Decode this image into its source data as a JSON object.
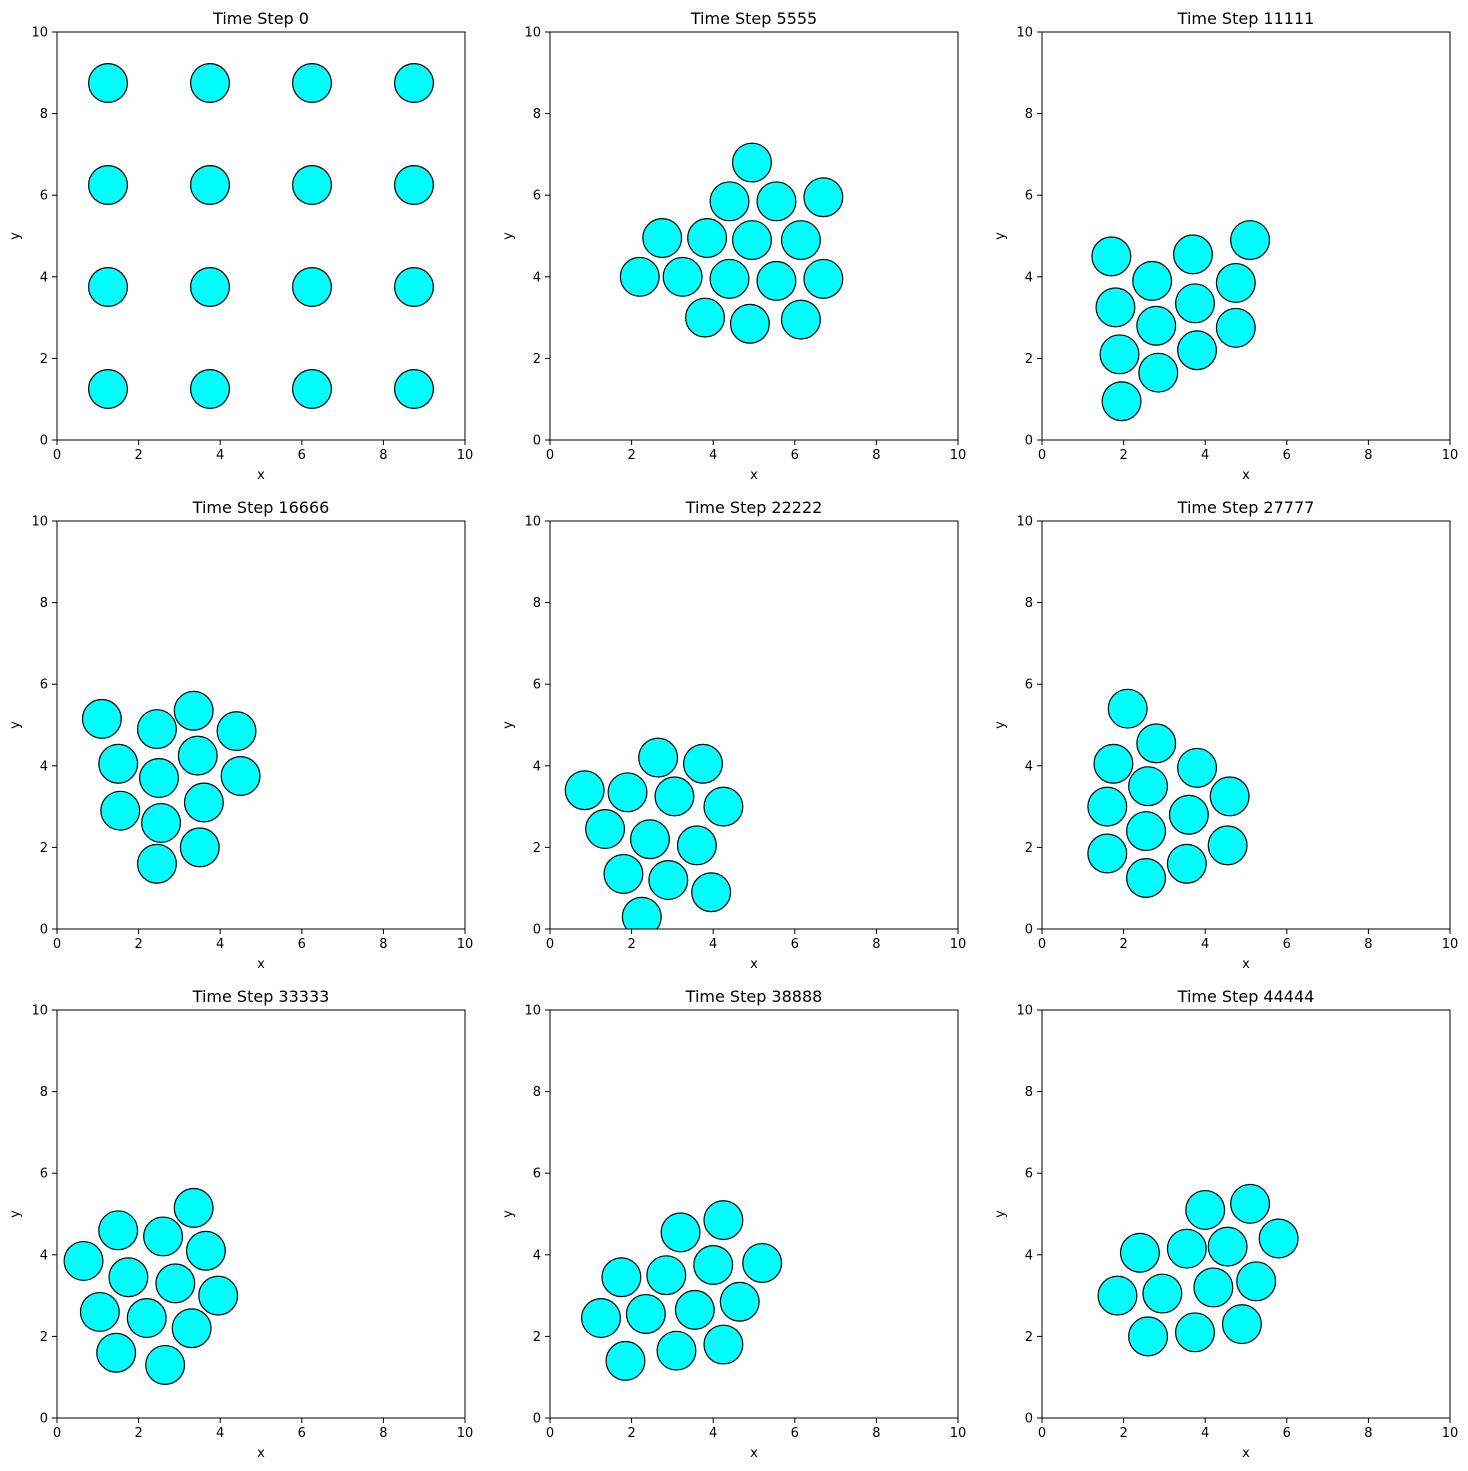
{
  "figure": {
    "marker_fill": "#00ffff",
    "marker_edge": "#000000"
  },
  "chart_data": [
    {
      "type": "scatter",
      "title": "Time Step 0",
      "xlabel": "x",
      "ylabel": "y",
      "xlim": [
        0,
        10
      ],
      "ylim": [
        0,
        10
      ],
      "xticks": [
        0,
        2,
        4,
        6,
        8,
        10
      ],
      "yticks": [
        0,
        2,
        4,
        6,
        8,
        10
      ],
      "grid": false,
      "particle_diameter": 0.95,
      "points": [
        [
          1.25,
          8.75
        ],
        [
          3.75,
          8.75
        ],
        [
          6.25,
          8.75
        ],
        [
          8.75,
          8.75
        ],
        [
          1.25,
          6.25
        ],
        [
          3.75,
          6.25
        ],
        [
          6.25,
          6.25
        ],
        [
          8.75,
          6.25
        ],
        [
          1.25,
          3.75
        ],
        [
          3.75,
          3.75
        ],
        [
          6.25,
          3.75
        ],
        [
          8.75,
          3.75
        ],
        [
          1.25,
          1.25
        ],
        [
          3.75,
          1.25
        ],
        [
          6.25,
          1.25
        ],
        [
          8.75,
          1.25
        ]
      ]
    },
    {
      "type": "scatter",
      "title": "Time Step 5555",
      "xlabel": "x",
      "ylabel": "y",
      "xlim": [
        0,
        10
      ],
      "ylim": [
        0,
        10
      ],
      "xticks": [
        0,
        2,
        4,
        6,
        8,
        10
      ],
      "yticks": [
        0,
        2,
        4,
        6,
        8,
        10
      ],
      "grid": false,
      "particle_diameter": 0.95,
      "points": [
        [
          4.95,
          6.8
        ],
        [
          4.4,
          5.85
        ],
        [
          5.55,
          5.85
        ],
        [
          6.7,
          5.95
        ],
        [
          2.75,
          4.95
        ],
        [
          3.85,
          4.95
        ],
        [
          4.95,
          4.9
        ],
        [
          6.15,
          4.9
        ],
        [
          2.2,
          4.0
        ],
        [
          3.25,
          4.0
        ],
        [
          4.4,
          3.95
        ],
        [
          5.55,
          3.9
        ],
        [
          6.7,
          3.95
        ],
        [
          3.8,
          3.0
        ],
        [
          4.9,
          2.85
        ],
        [
          6.15,
          2.95
        ]
      ]
    },
    {
      "type": "scatter",
      "title": "Time Step 11111",
      "xlabel": "x",
      "ylabel": "y",
      "xlim": [
        0,
        10
      ],
      "ylim": [
        0,
        10
      ],
      "xticks": [
        0,
        2,
        4,
        6,
        8,
        10
      ],
      "yticks": [
        0,
        2,
        4,
        6,
        8,
        10
      ],
      "grid": false,
      "particle_diameter": 0.95,
      "points": [
        [
          5.1,
          4.9
        ],
        [
          1.7,
          4.5
        ],
        [
          3.7,
          4.55
        ],
        [
          2.7,
          3.9
        ],
        [
          4.75,
          3.85
        ],
        [
          1.8,
          3.25
        ],
        [
          3.75,
          3.35
        ],
        [
          2.8,
          2.8
        ],
        [
          4.75,
          2.75
        ],
        [
          1.9,
          2.1
        ],
        [
          3.8,
          2.2
        ],
        [
          2.85,
          1.65
        ],
        [
          1.95,
          0.95
        ]
      ]
    },
    {
      "type": "scatter",
      "title": "Time Step 16666",
      "xlabel": "x",
      "ylabel": "y",
      "xlim": [
        0,
        10
      ],
      "ylim": [
        0,
        10
      ],
      "xticks": [
        0,
        2,
        4,
        6,
        8,
        10
      ],
      "yticks": [
        0,
        2,
        4,
        6,
        8,
        10
      ],
      "grid": false,
      "particle_diameter": 0.95,
      "points": [
        [
          1.1,
          5.15
        ],
        [
          3.35,
          5.35
        ],
        [
          2.45,
          4.9
        ],
        [
          4.4,
          4.85
        ],
        [
          1.5,
          4.05
        ],
        [
          3.45,
          4.25
        ],
        [
          2.5,
          3.7
        ],
        [
          4.5,
          3.75
        ],
        [
          1.55,
          2.9
        ],
        [
          3.6,
          3.1
        ],
        [
          2.55,
          2.6
        ],
        [
          3.5,
          2.0
        ],
        [
          2.45,
          1.6
        ]
      ]
    },
    {
      "type": "scatter",
      "title": "Time Step 22222",
      "xlabel": "x",
      "ylabel": "y",
      "xlim": [
        0,
        10
      ],
      "ylim": [
        0,
        10
      ],
      "xticks": [
        0,
        2,
        4,
        6,
        8,
        10
      ],
      "yticks": [
        0,
        2,
        4,
        6,
        8,
        10
      ],
      "grid": false,
      "particle_diameter": 0.95,
      "points": [
        [
          2.65,
          4.2
        ],
        [
          3.75,
          4.05
        ],
        [
          0.85,
          3.4
        ],
        [
          1.9,
          3.35
        ],
        [
          3.05,
          3.25
        ],
        [
          4.25,
          3.0
        ],
        [
          1.35,
          2.45
        ],
        [
          2.45,
          2.2
        ],
        [
          3.6,
          2.05
        ],
        [
          1.8,
          1.35
        ],
        [
          2.9,
          1.2
        ],
        [
          3.95,
          0.9
        ],
        [
          2.25,
          0.3
        ]
      ]
    },
    {
      "type": "scatter",
      "title": "Time Step 27777",
      "xlabel": "x",
      "ylabel": "y",
      "xlim": [
        0,
        10
      ],
      "ylim": [
        0,
        10
      ],
      "xticks": [
        0,
        2,
        4,
        6,
        8,
        10
      ],
      "yticks": [
        0,
        2,
        4,
        6,
        8,
        10
      ],
      "grid": false,
      "particle_diameter": 0.95,
      "points": [
        [
          2.1,
          5.4
        ],
        [
          2.8,
          4.55
        ],
        [
          1.75,
          4.05
        ],
        [
          3.8,
          3.95
        ],
        [
          2.6,
          3.5
        ],
        [
          4.6,
          3.25
        ],
        [
          1.6,
          3.0
        ],
        [
          3.6,
          2.8
        ],
        [
          2.55,
          2.4
        ],
        [
          1.6,
          1.85
        ],
        [
          4.55,
          2.05
        ],
        [
          3.55,
          1.6
        ],
        [
          2.55,
          1.25
        ]
      ]
    },
    {
      "type": "scatter",
      "title": "Time Step 33333",
      "xlabel": "x",
      "ylabel": "y",
      "xlim": [
        0,
        10
      ],
      "ylim": [
        0,
        10
      ],
      "xticks": [
        0,
        2,
        4,
        6,
        8,
        10
      ],
      "yticks": [
        0,
        2,
        4,
        6,
        8,
        10
      ],
      "grid": false,
      "particle_diameter": 0.95,
      "points": [
        [
          3.35,
          5.15
        ],
        [
          1.5,
          4.6
        ],
        [
          2.6,
          4.45
        ],
        [
          3.65,
          4.1
        ],
        [
          0.65,
          3.85
        ],
        [
          1.75,
          3.45
        ],
        [
          2.9,
          3.3
        ],
        [
          3.95,
          3.0
        ],
        [
          1.05,
          2.6
        ],
        [
          2.2,
          2.45
        ],
        [
          3.3,
          2.2
        ],
        [
          1.45,
          1.6
        ],
        [
          2.65,
          1.3
        ]
      ]
    },
    {
      "type": "scatter",
      "title": "Time Step 38888",
      "xlabel": "x",
      "ylabel": "y",
      "xlim": [
        0,
        10
      ],
      "ylim": [
        0,
        10
      ],
      "xticks": [
        0,
        2,
        4,
        6,
        8,
        10
      ],
      "yticks": [
        0,
        2,
        4,
        6,
        8,
        10
      ],
      "grid": false,
      "particle_diameter": 0.95,
      "points": [
        [
          4.25,
          4.85
        ],
        [
          3.2,
          4.55
        ],
        [
          5.2,
          3.8
        ],
        [
          4.0,
          3.75
        ],
        [
          1.75,
          3.45
        ],
        [
          2.85,
          3.5
        ],
        [
          1.25,
          2.45
        ],
        [
          2.35,
          2.55
        ],
        [
          3.55,
          2.65
        ],
        [
          4.65,
          2.85
        ],
        [
          1.85,
          1.4
        ],
        [
          3.1,
          1.65
        ],
        [
          4.25,
          1.8
        ]
      ]
    },
    {
      "type": "scatter",
      "title": "Time Step 44444",
      "xlabel": "x",
      "ylabel": "y",
      "xlim": [
        0,
        10
      ],
      "ylim": [
        0,
        10
      ],
      "xticks": [
        0,
        2,
        4,
        6,
        8,
        10
      ],
      "yticks": [
        0,
        2,
        4,
        6,
        8,
        10
      ],
      "grid": false,
      "particle_diameter": 0.95,
      "points": [
        [
          4.0,
          5.1
        ],
        [
          5.1,
          5.25
        ],
        [
          5.8,
          4.4
        ],
        [
          2.4,
          4.05
        ],
        [
          3.55,
          4.15
        ],
        [
          4.55,
          4.2
        ],
        [
          1.85,
          3.0
        ],
        [
          2.95,
          3.05
        ],
        [
          4.2,
          3.2
        ],
        [
          5.25,
          3.35
        ],
        [
          2.6,
          2.0
        ],
        [
          3.75,
          2.1
        ],
        [
          4.9,
          2.3
        ]
      ]
    }
  ]
}
